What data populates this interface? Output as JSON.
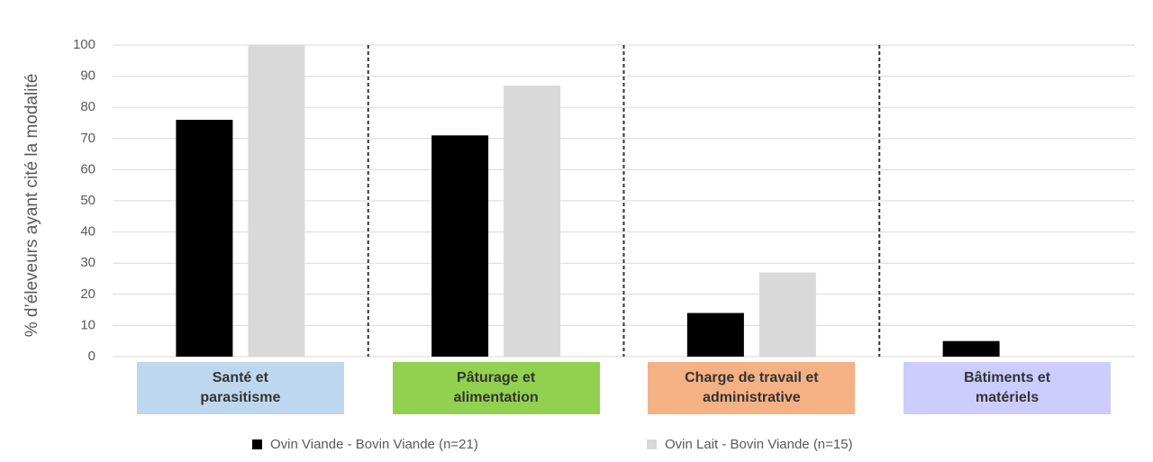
{
  "chart_data": {
    "type": "bar",
    "y_label": "% d’éleveurs ayant cité la modalité",
    "categories": [
      "Santé et parasitisme",
      "Pâturage et alimentation",
      "Charge de travail et administrative",
      "Bâtiments et matériels"
    ],
    "category_colors": [
      "#bdd7ee",
      "#92d050",
      "#f4b183",
      "#ccccff"
    ],
    "series": [
      {
        "name": "Ovin Viande - Bovin Viande (n=21)",
        "color": "#000000",
        "values": [
          76,
          71,
          14,
          5
        ]
      },
      {
        "name": "Ovin Lait - Bovin Viande (n=15)",
        "color": "#d9d9d9",
        "values": [
          100,
          87,
          27,
          0
        ]
      }
    ],
    "ylim": [
      0,
      100
    ],
    "yticks": [
      0,
      10,
      20,
      30,
      40,
      50,
      60,
      70,
      80,
      90,
      100
    ],
    "grid": true
  }
}
